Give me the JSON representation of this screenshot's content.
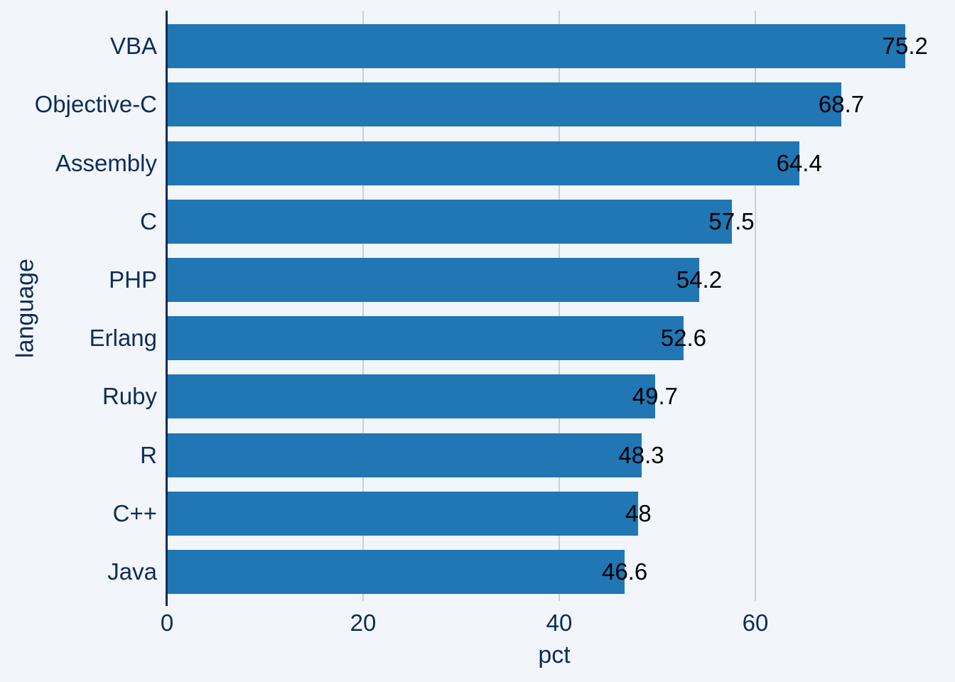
{
  "chart_data": {
    "type": "bar",
    "orientation": "horizontal",
    "title": "",
    "xlabel": "pct",
    "ylabel": "language",
    "categories": [
      "VBA",
      "Objective-C",
      "Assembly",
      "C",
      "PHP",
      "Erlang",
      "Ruby",
      "R",
      "C++",
      "Java"
    ],
    "values": [
      75.2,
      68.7,
      64.4,
      57.5,
      54.2,
      52.6,
      49.7,
      48.3,
      48,
      46.6
    ],
    "value_labels": [
      "75.2",
      "68.7",
      "64.4",
      "57.5",
      "54.2",
      "52.6",
      "49.7",
      "48.3",
      "48",
      "46.6"
    ],
    "x_ticks": [
      0,
      20,
      40,
      60
    ],
    "xlim": [
      0,
      79
    ],
    "grid": "vertical-gridlines-at-x-ticks",
    "legend": "none",
    "value_label_position": "centered-on-bar-end",
    "colors": {
      "bar": "#2176b4",
      "axis_text": "#0d2d5a",
      "value_label": "#000000",
      "background": "#f2f5fa",
      "gridline": "#cacfdb"
    }
  }
}
